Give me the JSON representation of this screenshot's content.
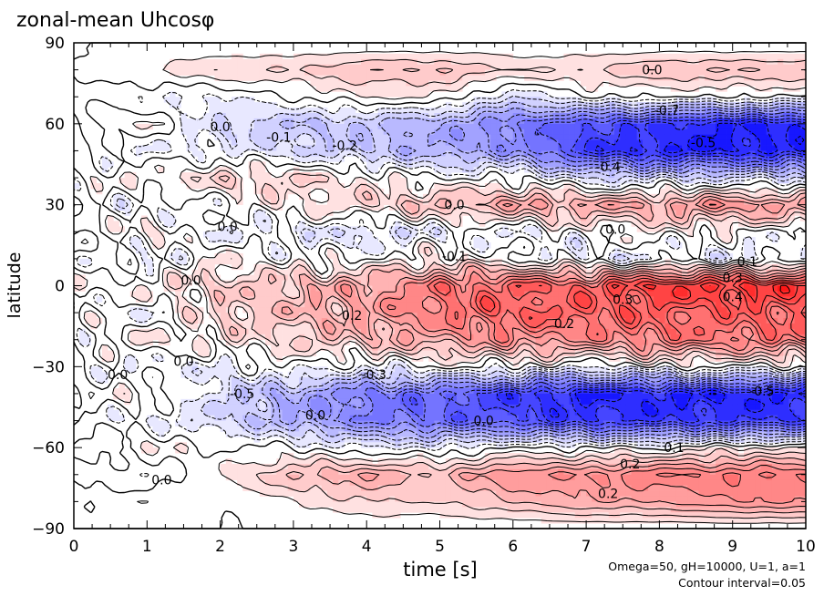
{
  "chart_data": {
    "type": "heatmap",
    "title": "zonal-mean Uhcosφ",
    "xlabel": "time [s]",
    "ylabel": "latitude",
    "xlim": [
      0,
      10
    ],
    "ylim": [
      -90,
      90
    ],
    "xticks": [
      "0",
      "1",
      "2",
      "3",
      "4",
      "5",
      "6",
      "7",
      "8",
      "9",
      "10"
    ],
    "yticks": [
      "90",
      "60",
      "30",
      "0",
      "−30",
      "−60",
      "−90"
    ],
    "note_params": "Omega=50, gH=10000, U=1, a=1",
    "note_interval": "Contour interval=0.05",
    "contour_interval": 0.05,
    "colors": {
      "positive": "#ff0000",
      "negative": "#0000ff",
      "zero": "#ffffff"
    },
    "grid_times": [
      0,
      1,
      2,
      3,
      4,
      5,
      6,
      7,
      8,
      9,
      10
    ],
    "grid_lats": [
      90,
      80,
      70,
      60,
      50,
      40,
      30,
      20,
      10,
      0,
      -10,
      -20,
      -30,
      -40,
      -50,
      -60,
      -70,
      -80,
      -90
    ],
    "values_by_time": [
      [
        0,
        0,
        0,
        0,
        0,
        0,
        0,
        0,
        0,
        0,
        0,
        0,
        0,
        0,
        0,
        0,
        0,
        0,
        0
      ],
      [
        0,
        0.05,
        -0.05,
        0.05,
        -0.05,
        0.05,
        -0.05,
        0.05,
        -0.05,
        0.05,
        -0.05,
        0.05,
        -0.05,
        0.05,
        -0.05,
        0.05,
        -0.05,
        0.05,
        0
      ],
      [
        0,
        0.1,
        -0.05,
        -0.1,
        -0.05,
        0.1,
        0,
        -0.05,
        0.05,
        0.1,
        0.1,
        0.05,
        -0.05,
        -0.1,
        -0.1,
        0,
        0.05,
        0,
        0
      ],
      [
        0,
        0.1,
        0,
        -0.15,
        -0.1,
        0.1,
        0.05,
        -0.05,
        0,
        0.15,
        0.15,
        0.1,
        0,
        -0.2,
        -0.2,
        0,
        0.15,
        0.05,
        0
      ],
      [
        0,
        0.15,
        0.05,
        -0.15,
        -0.15,
        0.05,
        0.1,
        -0.1,
        0,
        0.2,
        0.2,
        0.15,
        -0.05,
        -0.3,
        -0.3,
        -0.05,
        0.2,
        0.1,
        0
      ],
      [
        0,
        0.15,
        0.05,
        -0.2,
        -0.2,
        0,
        0.15,
        -0.05,
        0.05,
        0.3,
        0.3,
        0.2,
        0,
        -0.35,
        -0.35,
        -0.05,
        0.15,
        0.1,
        0
      ],
      [
        0,
        0.1,
        -0.1,
        -0.3,
        -0.25,
        0,
        0.2,
        -0.05,
        0,
        0.35,
        0.35,
        0.25,
        0,
        -0.45,
        -0.4,
        0,
        0.25,
        0.15,
        0
      ],
      [
        0,
        0.1,
        0,
        -0.4,
        -0.45,
        -0.1,
        0.2,
        0,
        -0.05,
        0.35,
        0.35,
        0.25,
        -0.05,
        -0.5,
        -0.45,
        0,
        0.25,
        0.2,
        0
      ],
      [
        0,
        0.15,
        0,
        -0.45,
        -0.5,
        -0.1,
        0.2,
        0.05,
        -0.05,
        0.45,
        0.35,
        0.3,
        0,
        -0.5,
        -0.45,
        0,
        0.3,
        0.2,
        0
      ],
      [
        0,
        0.15,
        0,
        -0.5,
        -0.5,
        -0.1,
        0.25,
        0,
        -0.05,
        0.45,
        0.35,
        0.3,
        0,
        -0.5,
        -0.45,
        0.05,
        0.3,
        0.25,
        0
      ],
      [
        0,
        0.15,
        0,
        -0.5,
        -0.5,
        -0.1,
        0.2,
        0,
        -0.05,
        0.45,
        0.35,
        0.3,
        0,
        -0.5,
        -0.45,
        0.05,
        0.3,
        0.25,
        0
      ]
    ],
    "contour_labels": [
      {
        "t": 7.9,
        "lat": 80,
        "text": "0.0"
      },
      {
        "t": 8.1,
        "lat": 65,
        "text": "-0.7"
      },
      {
        "t": 8.6,
        "lat": 53,
        "text": "-0.5"
      },
      {
        "t": 7.3,
        "lat": 44,
        "text": "-0.4"
      },
      {
        "t": 5.2,
        "lat": 30,
        "text": "0.0"
      },
      {
        "t": 7.4,
        "lat": 21,
        "text": "0.0"
      },
      {
        "t": 5.2,
        "lat": 11,
        "text": "-0.1"
      },
      {
        "t": 9.2,
        "lat": 9,
        "text": "0.1"
      },
      {
        "t": 9.0,
        "lat": 3,
        "text": "0.3"
      },
      {
        "t": 9.0,
        "lat": -4,
        "text": "0.4"
      },
      {
        "t": 7.5,
        "lat": -5,
        "text": "0.3"
      },
      {
        "t": 6.7,
        "lat": -14,
        "text": "0.2"
      },
      {
        "t": 3.8,
        "lat": -11,
        "text": "0.2"
      },
      {
        "t": 4.1,
        "lat": -33,
        "text": "-0.3"
      },
      {
        "t": 9.4,
        "lat": -39,
        "text": "-0.5"
      },
      {
        "t": 2.3,
        "lat": -40,
        "text": "-0.5"
      },
      {
        "t": 3.3,
        "lat": -48,
        "text": "0.0"
      },
      {
        "t": 5.6,
        "lat": -50,
        "text": "0.0"
      },
      {
        "t": 8.2,
        "lat": -60,
        "text": "0.1"
      },
      {
        "t": 7.6,
        "lat": -66,
        "text": "0.2"
      },
      {
        "t": 7.3,
        "lat": -77,
        "text": "0.2"
      },
      {
        "t": 1.2,
        "lat": -72,
        "text": "0.0"
      },
      {
        "t": 2.0,
        "lat": 59,
        "text": "0.0"
      },
      {
        "t": 2.8,
        "lat": 55,
        "text": "-0.1"
      },
      {
        "t": 3.7,
        "lat": 52,
        "text": "-0.2"
      },
      {
        "t": 2.1,
        "lat": 22,
        "text": "0.0"
      },
      {
        "t": 1.6,
        "lat": 2,
        "text": "0.0"
      },
      {
        "t": 1.5,
        "lat": -28,
        "text": "0.0"
      },
      {
        "t": 0.6,
        "lat": -33,
        "text": "0.0"
      }
    ]
  }
}
